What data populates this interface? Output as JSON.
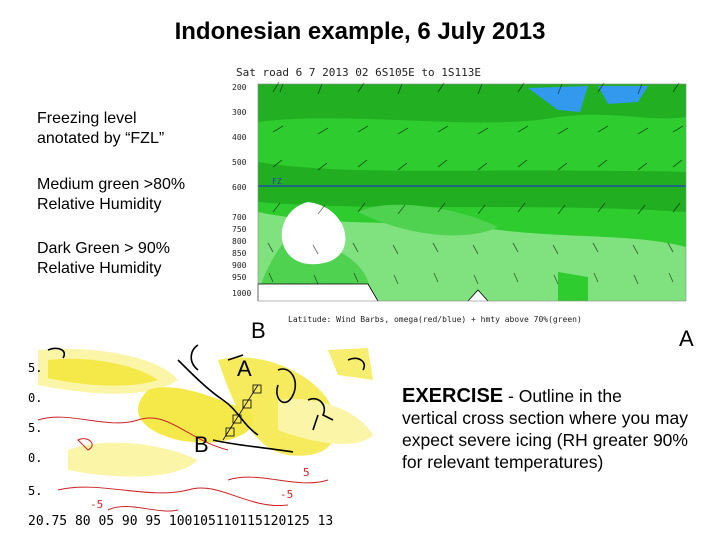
{
  "title": "Indonesian example, 6 July 2013",
  "notes": [
    {
      "line1": "Freezing level",
      "line2": "anotated by “FZL”"
    },
    {
      "line1": "Medium green >80%",
      "line2": "Relative Humidity"
    },
    {
      "line1": "Dark Green > 90%",
      "line2": "Relative Humidity"
    }
  ],
  "cross_section": {
    "header": "Sat road 6 7 2013 02 6S105E to 1S113E",
    "footer": "Latitude: Wind Barbs, omega(red/blue) + hmty above 70%(green)",
    "fzl_label": "FZ",
    "pressure_levels": [
      "200",
      "300",
      "400",
      "500",
      "600",
      "700",
      "750",
      "800",
      "850",
      "900",
      "950",
      "1000"
    ],
    "colors": {
      "medium_green": "#2ecc2e",
      "dark_green": "#1fa81f",
      "light_green": "#7fe27f",
      "blue": "#3399ee"
    }
  },
  "labels": {
    "b_top": "B",
    "a_top": "A",
    "a_map": "A",
    "b_map": "B"
  },
  "map": {
    "lon_labels": "20.75 80 05 90 95 100105110115120125 13",
    "lat_labels": [
      "5.",
      "0.",
      "5.",
      "0.",
      "5."
    ],
    "contour_labels": [
      "-5",
      "5",
      "-5"
    ],
    "colors": {
      "yellow": "#f5e94a",
      "pale_yellow": "#fbf5a8",
      "contour": "#cc2222"
    }
  },
  "exercise": {
    "heading": "EXERCISE",
    "lead": " - Outline in the",
    "body": "vertical cross section where you may expect severe icing (RH greater 90% for relevant temperatures)"
  }
}
